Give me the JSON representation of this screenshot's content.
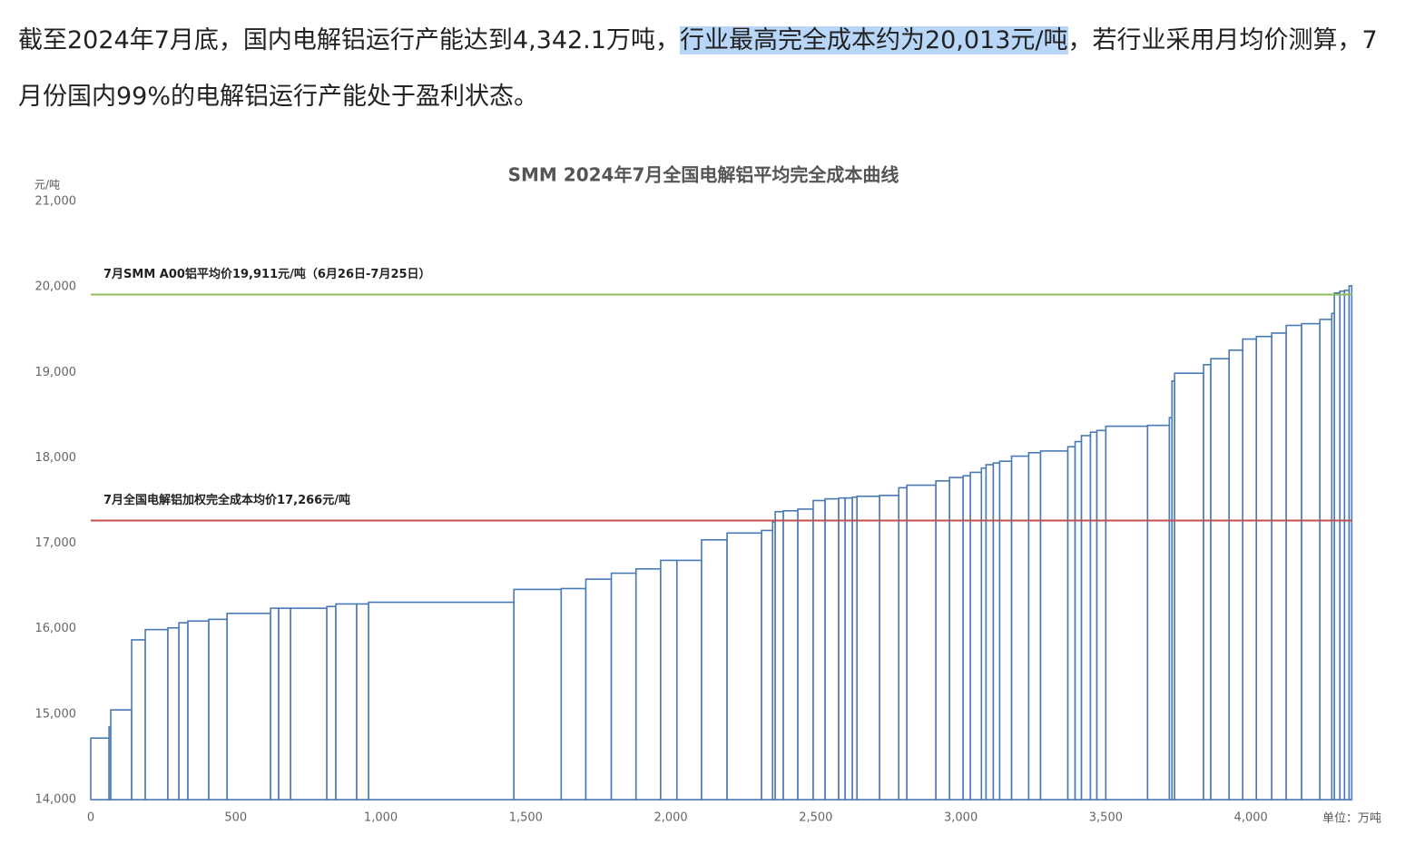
{
  "paragraph": {
    "before": "截至2024年7月底，国内电解铝运行产能达到4,342.1万吨，",
    "highlight": "行业最高完全成本约为20,013元/吨",
    "after": "，若行业采用月均价测算，7月份国内99%的电解铝运行产能处于盈利状态。"
  },
  "chart_data": {
    "type": "cost_curve",
    "title": "SMM  2024年7月全国电解铝平均完全成本曲线",
    "y_label": "元/吨",
    "x_label": "单位：万吨",
    "color": "#4a7ab5",
    "widths": [
      63,
      6,
      72,
      47,
      78,
      38,
      31,
      72,
      63,
      150,
      28,
      41,
      125,
      31,
      72,
      41,
      501,
      163,
      85,
      88,
      85,
      85,
      56,
      85,
      88,
      119,
      38,
      9,
      28,
      50,
      53,
      41,
      47,
      22,
      25,
      16,
      78,
      66,
      28,
      100,
      47,
      47,
      25,
      38,
      16,
      25,
      22,
      41,
      59,
      41,
      94,
      25,
      22,
      31,
      22,
      31,
      144,
      75,
      9,
      9,
      100,
      25,
      63,
      47,
      47,
      53,
      50,
      53,
      63,
      41,
      9,
      19,
      16,
      16,
      9
    ],
    "values": [
      14720,
      14850,
      15050,
      15870,
      15990,
      16010,
      16070,
      16090,
      16110,
      16180,
      16240,
      16240,
      16240,
      16260,
      16290,
      16290,
      16310,
      16460,
      16470,
      16580,
      16650,
      16700,
      16800,
      16800,
      17040,
      17120,
      17150,
      17250,
      17370,
      17380,
      17400,
      17500,
      17520,
      17530,
      17530,
      17540,
      17550,
      17560,
      17650,
      17680,
      17730,
      17770,
      17790,
      17830,
      17880,
      17920,
      17940,
      17960,
      18020,
      18060,
      18080,
      18130,
      18190,
      18260,
      18300,
      18320,
      18370,
      18380,
      18470,
      18900,
      18990,
      19090,
      19160,
      19260,
      19390,
      19420,
      19460,
      19550,
      19570,
      19620,
      19690,
      19930,
      19950,
      19960,
      20013
    ],
    "reference_lines": [
      {
        "value": 19911,
        "label": "7月SMM A00铝平均价19,911元/吨（6月26日-7月25日）",
        "color": "#8fbf5a"
      },
      {
        "value": 17266,
        "label": "7月全国电解铝加权完全成本均价17,266元/吨",
        "color": "#c0504d"
      }
    ],
    "xlim": [
      0,
      4350
    ],
    "ylim": [
      14000,
      21000
    ],
    "xticks": [
      0,
      500,
      {
        "value": 1000,
        "label": "1,000"
      },
      {
        "value": 1500,
        "label": "1,500"
      },
      {
        "value": 2000,
        "label": "2,000"
      },
      {
        "value": 2500,
        "label": "2,500"
      },
      {
        "value": 3000,
        "label": "3,000"
      },
      {
        "value": 3500,
        "label": "3,500"
      },
      {
        "value": 4000,
        "label": "4,000"
      }
    ],
    "yticks": [
      {
        "value": 14000,
        "label": "14,000"
      },
      {
        "value": 15000,
        "label": "15,000"
      },
      {
        "value": 16000,
        "label": "16,000"
      },
      {
        "value": 17000,
        "label": "17,000"
      },
      {
        "value": 18000,
        "label": "18,000"
      },
      {
        "value": 19000,
        "label": "19,000"
      },
      {
        "value": 20000,
        "label": "20,000"
      },
      {
        "value": 21000,
        "label": "21,000"
      }
    ]
  }
}
